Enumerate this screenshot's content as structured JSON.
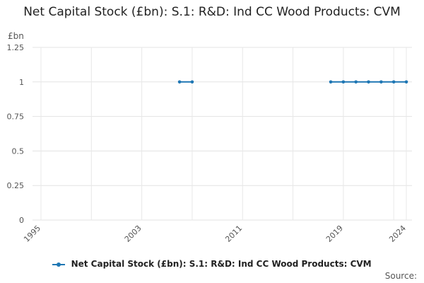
{
  "chart_data": {
    "type": "line",
    "title": "Net Capital Stock (£bn): S.1: R&D: Ind CC Wood Products: CVM",
    "ylabel": "£bn",
    "xlabel": "",
    "xlim": [
      1995,
      2024
    ],
    "ylim": [
      0,
      1.25
    ],
    "x_ticks": [
      "1995",
      "2003",
      "2011",
      "2019",
      "2024"
    ],
    "y_ticks": [
      "0",
      "0.25",
      "0.5",
      "0.75",
      "1",
      "1.25"
    ],
    "grid": true,
    "legend_position": "bottom",
    "series": [
      {
        "name": "Net Capital Stock (£bn): S.1: R&D: Ind CC Wood Products: CVM",
        "color": "#1f77b4",
        "segments": [
          [
            [
              2006,
              1
            ],
            [
              2007,
              1
            ]
          ],
          [
            [
              2018,
              1
            ],
            [
              2019,
              1
            ],
            [
              2020,
              1
            ],
            [
              2021,
              1
            ],
            [
              2022,
              1
            ],
            [
              2023,
              1
            ],
            [
              2024,
              1
            ]
          ]
        ]
      }
    ]
  },
  "source_label": "Source:"
}
